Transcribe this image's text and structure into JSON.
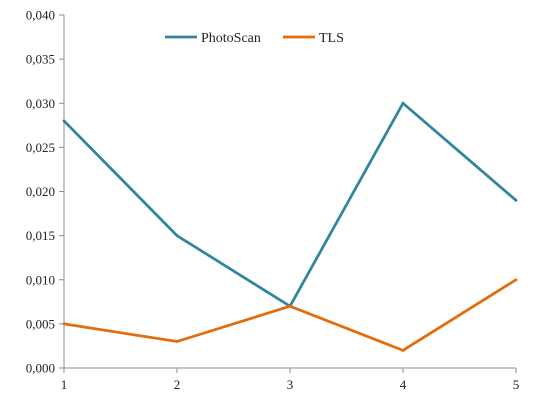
{
  "chart_data": {
    "type": "line",
    "x": [
      1,
      2,
      3,
      4,
      5
    ],
    "ylim": [
      0,
      0.04
    ],
    "yticks": [
      0.0,
      0.005,
      0.01,
      0.015,
      0.02,
      0.025,
      0.03,
      0.035,
      0.04
    ],
    "ytick_labels": [
      "0,000",
      "0,005",
      "0,010",
      "0,015",
      "0,020",
      "0,025",
      "0,030",
      "0,035",
      "0,040"
    ],
    "xtick_labels": [
      "1",
      "2",
      "3",
      "4",
      "5"
    ],
    "grid": false,
    "legend_position": "top-center",
    "series": [
      {
        "name": "PhotoScan",
        "color": "#31859c",
        "values": [
          0.028,
          0.015,
          0.007,
          0.03,
          0.019
        ]
      },
      {
        "name": "TLS",
        "color": "#e46c0a",
        "values": [
          0.005,
          0.003,
          0.007,
          0.002,
          0.01
        ]
      }
    ]
  }
}
